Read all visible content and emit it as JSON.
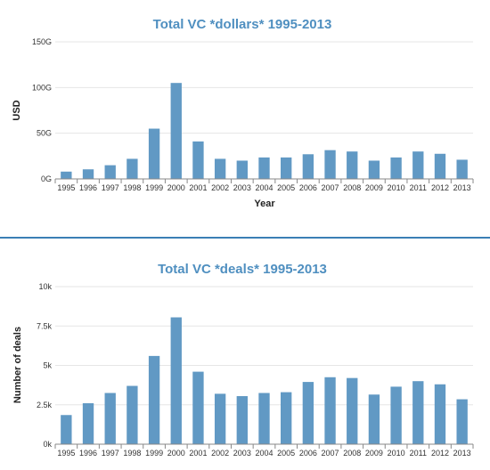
{
  "chart_data": [
    {
      "type": "bar",
      "title": "Total VC *dollars* 1995-2013",
      "xlabel": "Year",
      "ylabel": "USD",
      "categories": [
        "1995",
        "1996",
        "1997",
        "1998",
        "1999",
        "2000",
        "2001",
        "2002",
        "2003",
        "2004",
        "2005",
        "2006",
        "2007",
        "2008",
        "2009",
        "2010",
        "2011",
        "2012",
        "2013"
      ],
      "values": [
        8,
        10.5,
        15,
        22,
        55,
        105,
        41,
        22,
        20,
        23.5,
        23.5,
        27,
        31.5,
        30,
        20,
        23.5,
        30,
        27.5,
        21
      ],
      "value_unit": "G",
      "ylim": [
        0,
        150
      ],
      "yticks": [
        0,
        50,
        100,
        150
      ],
      "ytick_labels": [
        "0G",
        "50G",
        "100G",
        "150G"
      ],
      "grid": true,
      "legend": "none",
      "bar_color": "#6199c4"
    },
    {
      "type": "bar",
      "title": "Total VC *deals* 1995-2013",
      "xlabel": "",
      "ylabel": "Number of deals",
      "categories": [
        "1995",
        "1996",
        "1997",
        "1998",
        "1999",
        "2000",
        "2001",
        "2002",
        "2003",
        "2004",
        "2005",
        "2006",
        "2007",
        "2008",
        "2009",
        "2010",
        "2011",
        "2012",
        "2013"
      ],
      "values": [
        1850,
        2600,
        3250,
        3700,
        5600,
        8050,
        4600,
        3200,
        3050,
        3250,
        3300,
        3950,
        4250,
        4200,
        3150,
        3650,
        4000,
        3800,
        2850
      ],
      "ylim": [
        0,
        10000
      ],
      "yticks": [
        0,
        2500,
        5000,
        7500,
        10000
      ],
      "ytick_labels": [
        "0k",
        "2.5k",
        "5k",
        "7.5k",
        "10k"
      ],
      "grid": true,
      "legend": "none",
      "bar_color": "#6199c4"
    }
  ],
  "colors": {
    "title": "#4f8fc0",
    "bar": "#6199c4",
    "divider": "#3b7fb5"
  }
}
